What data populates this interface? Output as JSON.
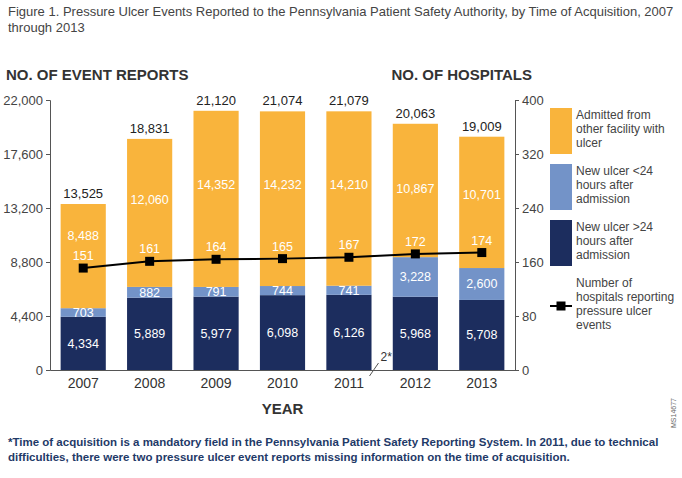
{
  "chart_data": {
    "type": "bar",
    "title": "Figure 1. Pressure Ulcer Events Reported to the Pennsylvania Patient Safety Authority, by Time of Acquisition, 2007 through 2013",
    "x_label": "YEAR",
    "y_label": "NO. OF EVENT REPORTS",
    "y2_label": "NO. OF HOSPITALS",
    "categories": [
      "2007",
      "2008",
      "2009",
      "2010",
      "2011",
      "2012",
      "2013"
    ],
    "stacked": true,
    "data_labels": true,
    "legend": "right",
    "ylim": [
      0,
      22000
    ],
    "yticks": [
      0,
      {
        "value": 4400,
        "label": "4,400"
      },
      {
        "value": 8800,
        "label": "8,800"
      },
      {
        "value": 13200,
        "label": "13,200"
      },
      {
        "value": 17600,
        "label": "17,600"
      },
      {
        "value": 22000,
        "label": "22,000"
      }
    ],
    "y2lim": [
      0,
      400
    ],
    "y2ticks": [
      0,
      80,
      160,
      240,
      320,
      400
    ],
    "series": [
      {
        "name": "New ulcer >24 hours after admission",
        "color": "#1c2d5e",
        "values": [
          4334,
          5889,
          5977,
          6098,
          6126,
          5968,
          5708
        ],
        "value_labels": [
          "4,334",
          "5,889",
          "5,977",
          "6,098",
          "6,126",
          "5,968",
          "5,708"
        ]
      },
      {
        "name": "New ulcer <24 hours after admission",
        "color": "#7393c8",
        "values": [
          703,
          882,
          791,
          744,
          741,
          3228,
          2600
        ],
        "value_labels": [
          "703",
          "882",
          "791",
          "744",
          "741",
          "3,228",
          "2,600"
        ]
      },
      {
        "name": "Admitted from other facility with ulcer",
        "color": "#f9b43c",
        "values": [
          8488,
          12060,
          14352,
          14232,
          14210,
          10867,
          10701
        ],
        "value_labels": [
          "8,488",
          "12,060",
          "14,352",
          "14,232",
          "14,210",
          "10,867",
          "10,701"
        ]
      },
      {
        "name": "Number of hospitals reporting pressure ulcer events",
        "type": "line",
        "axis": "y2",
        "color": "#000000",
        "marker": "square",
        "values": [
          151,
          161,
          164,
          165,
          167,
          172,
          174
        ]
      }
    ],
    "totals": [
      13525,
      18831,
      21120,
      21074,
      21079,
      20063,
      19009
    ],
    "total_labels": [
      "13,525",
      "18,831",
      "21,120",
      "21,074",
      "21,079",
      "20,063",
      "19,009"
    ],
    "annotations": [
      {
        "text": "2*",
        "category": "2011"
      }
    ],
    "footnote": "*Time of acquisition is a mandatory field in the Pennsylvania Patient Safety Reporting System. In 2011, due to technical difficulties, there were two pressure ulcer event reports missing information on the time of acquisition.",
    "side_note": "MS14677"
  }
}
